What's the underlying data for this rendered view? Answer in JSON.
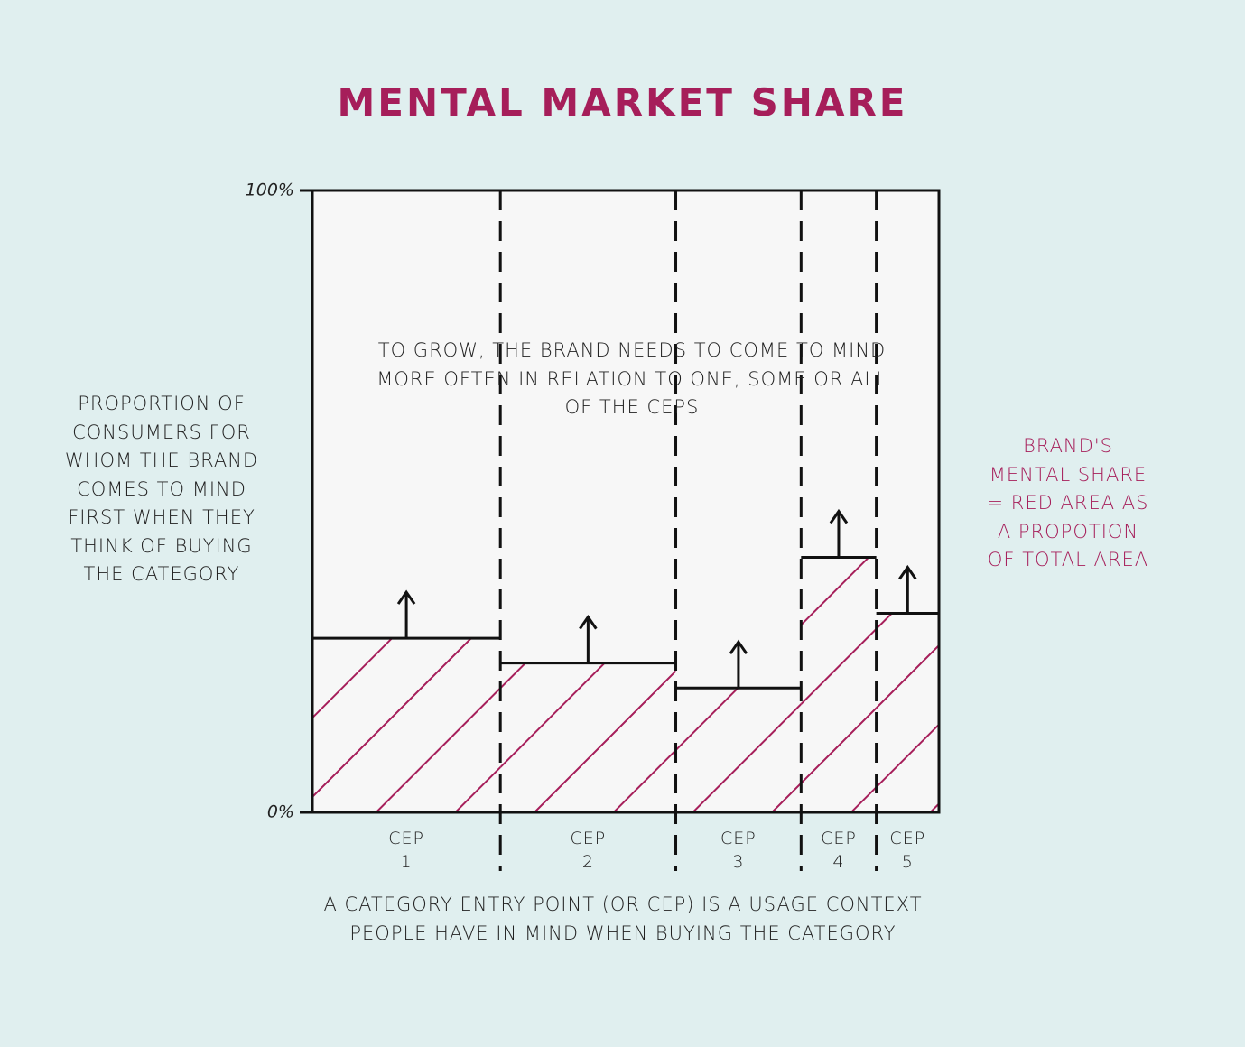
{
  "chart_data": {
    "type": "mekko",
    "title": "MENTAL MARKET SHARE",
    "y_label": "PROPORTION OF CONSUMERS FOR WHOM THE BRAND COMES TO MIND FIRST WHEN THEY THINK OF BUYING THE CATEGORY",
    "x_label": "A CATEGORY ENTRY POINT (OR CEP) IS A USAGE CONTEXT PEOPLE HAVE IN MIND WHEN BUYING THE CATEGORY",
    "annotations": [
      "TO GROW, THE BRAND NEEDS TO COME TO MIND MORE OFTEN IN RELATION TO ONE, SOME OR ALL OF THE CEPS",
      "BRAND'S MENTAL SHARE = RED AREA AS A PROPOTION OF TOTAL AREA"
    ],
    "categories": [
      "CEP 1",
      "CEP 2",
      "CEP 3",
      "CEP 4",
      "CEP 5"
    ],
    "values": [
      28,
      24,
      20,
      41,
      32
    ],
    "widths": [
      30,
      28,
      20,
      12,
      10
    ],
    "color": "#a61e5a",
    "ylim": [
      0,
      100
    ],
    "yticks": [
      {
        "value": 0,
        "label": "0%"
      },
      {
        "value": 100,
        "label": "100%"
      }
    ]
  }
}
